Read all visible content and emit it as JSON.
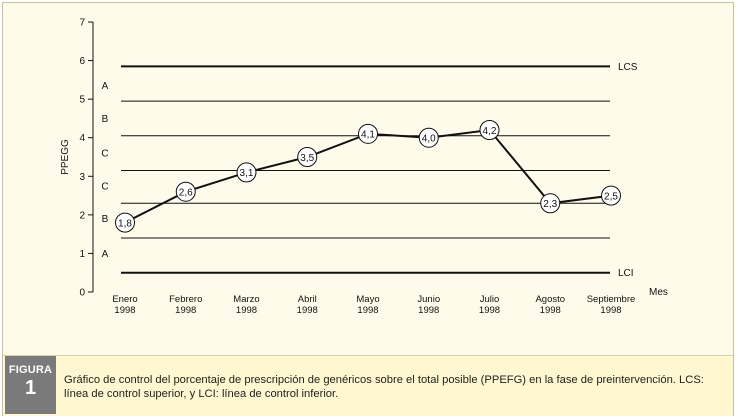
{
  "chart_data": {
    "type": "line",
    "ylabel": "PPEGG",
    "xlabel": "Mes",
    "ylim": [
      0,
      7
    ],
    "yticks": [
      0,
      1,
      2,
      3,
      4,
      5,
      6,
      7
    ],
    "categories": [
      [
        "Enero",
        "1998"
      ],
      [
        "Febrero",
        "1998"
      ],
      [
        "Marzo",
        "1998"
      ],
      [
        "Abril",
        "1998"
      ],
      [
        "Mayo",
        "1998"
      ],
      [
        "Junio",
        "1998"
      ],
      [
        "Julio",
        "1998"
      ],
      [
        "Agosto",
        "1998"
      ],
      [
        "Septiembre",
        "1998"
      ]
    ],
    "values": [
      1.8,
      2.6,
      3.1,
      3.5,
      4.1,
      4.0,
      4.2,
      2.3,
      2.5
    ],
    "data_labels": [
      "1,8",
      "2,6",
      "3,1",
      "3,5",
      "4,1",
      "4,0",
      "4,2",
      "2,3",
      "2,5"
    ],
    "control_lines": [
      {
        "label": "LCS",
        "value": 5.85
      },
      {
        "label": "LCI",
        "value": 0.5
      }
    ],
    "zone_lines": [
      1.4,
      2.3,
      3.15,
      4.05,
      4.95
    ],
    "zone_labels": [
      {
        "label": "A",
        "value": 5.35
      },
      {
        "label": "B",
        "value": 4.5
      },
      {
        "label": "C",
        "value": 3.6
      },
      {
        "label": "C",
        "value": 2.75
      },
      {
        "label": "B",
        "value": 1.9
      },
      {
        "label": "A",
        "value": 1.0
      }
    ],
    "grid": false
  },
  "caption": {
    "badge_word": "FIGURA",
    "badge_number": "1",
    "text": "Gráfico de control del porcentaje de prescripción de genéricos sobre el total posible (PPEFG) en la fase de preintervención. LCS: línea de control superior, y LCI: línea de control inferior."
  },
  "colors": {
    "background": "#fffbea",
    "caption_band": "#fff7cf",
    "badge": "#7a7a7a",
    "ink": "#111111"
  }
}
